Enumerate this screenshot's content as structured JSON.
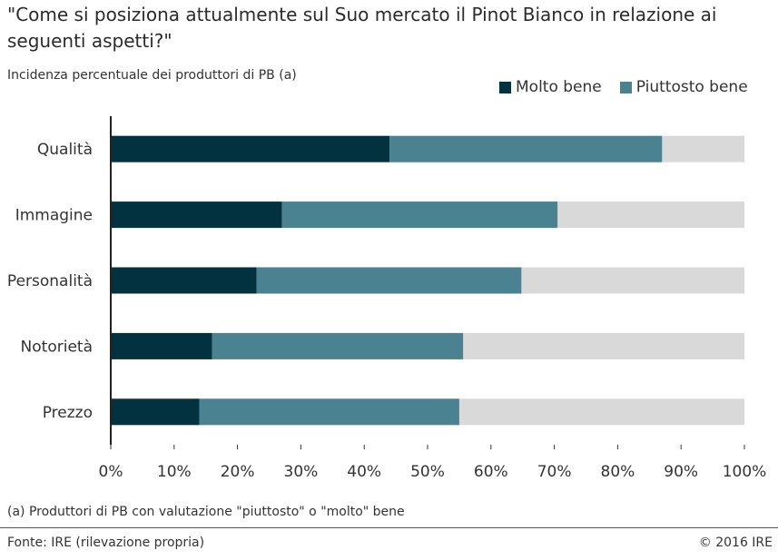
{
  "title": "\"Come si posiziona attualmente sul Suo mercato il Pinot Bianco in relazione ai seguenti aspetti?\"",
  "subtitle": "Incidenza percentuale dei produttori di PB (a)",
  "footnote": "(a) Produttori di PB con valutazione \"piuttosto\" o \"molto\" bene",
  "source": "Fonte: IRE (rilevazione propria)",
  "copyright": "© 2016 IRE",
  "colors": {
    "molto_bene": "#02323f",
    "piuttosto_bene": "#4a8291",
    "remainder": "#d9d9d9"
  },
  "chart_data": {
    "type": "bar",
    "orientation": "horizontal",
    "stacked": true,
    "categories": [
      "Qualità",
      "Immagine",
      "Personalità",
      "Notorietà",
      "Prezzo"
    ],
    "series": [
      {
        "name": "Molto bene",
        "values": [
          44,
          27,
          23,
          16,
          14
        ]
      },
      {
        "name": "Piuttosto bene",
        "values": [
          43,
          43.5,
          41.8,
          39.6,
          41
        ]
      }
    ],
    "xlim": [
      0,
      100
    ],
    "xticks": [
      "0%",
      "10%",
      "20%",
      "30%",
      "40%",
      "50%",
      "60%",
      "70%",
      "80%",
      "90%",
      "100%"
    ],
    "legend_position": "top-right",
    "grid": false
  }
}
